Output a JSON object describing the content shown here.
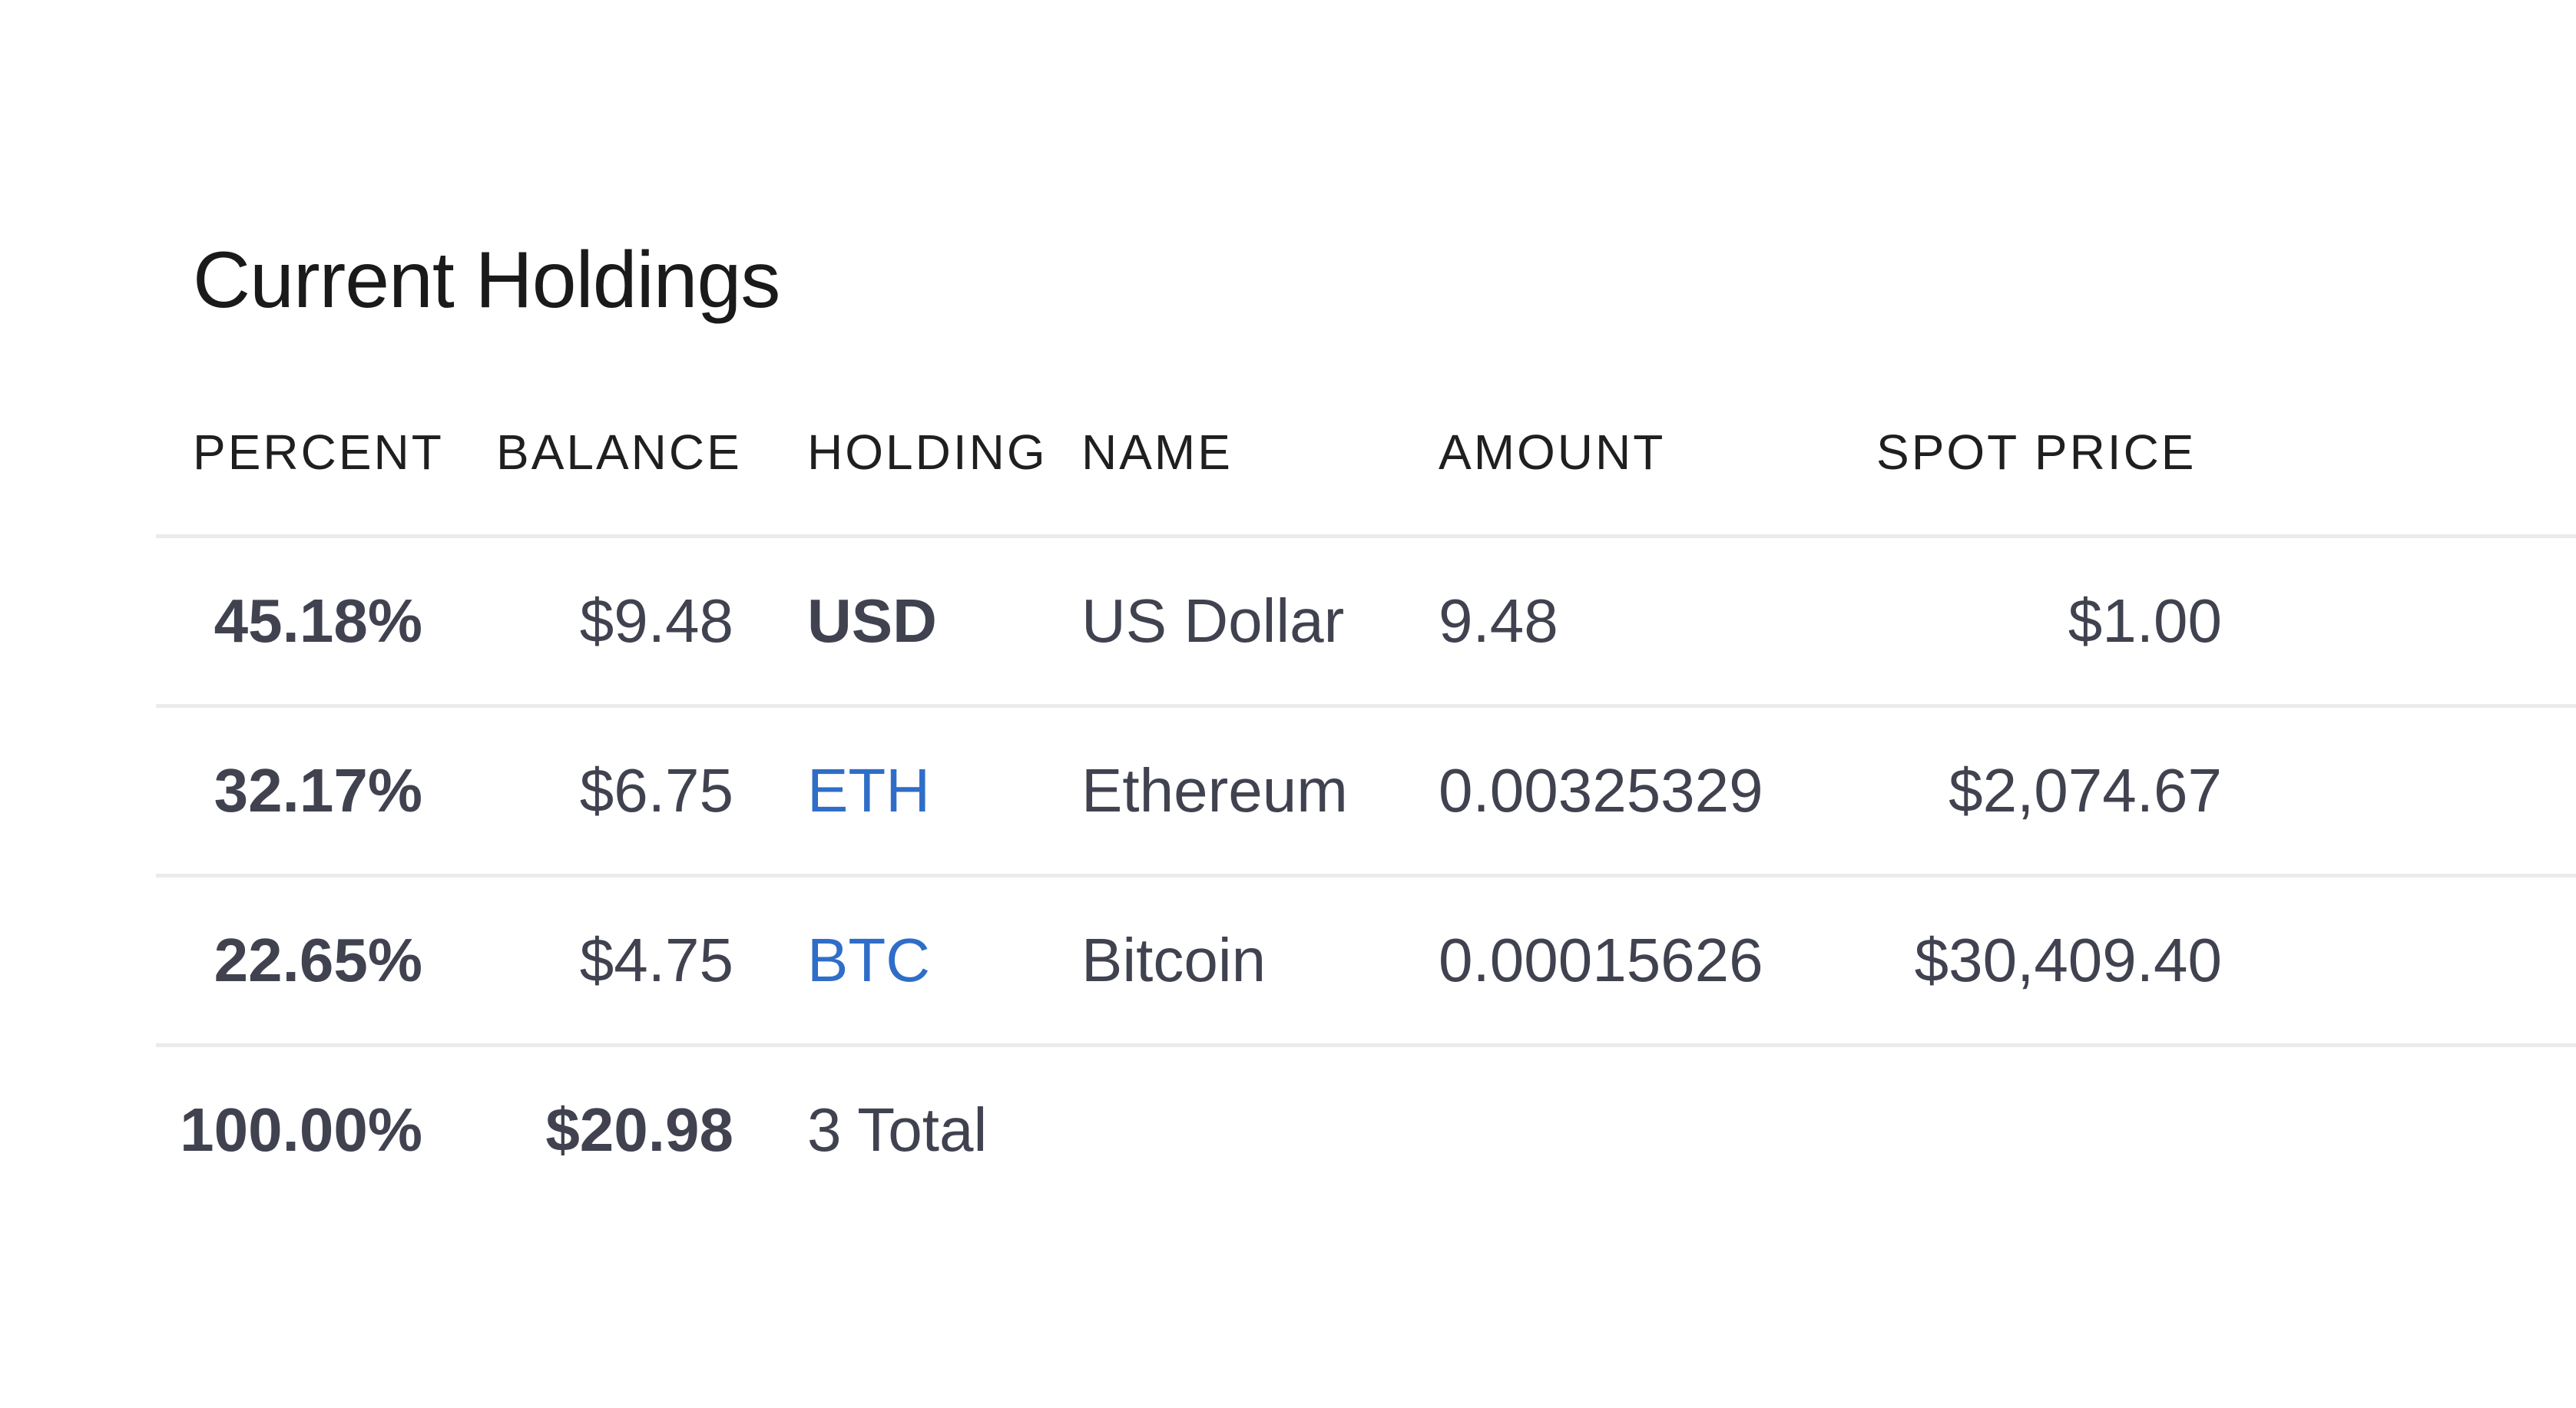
{
  "title": "Current Holdings",
  "columns": {
    "percent": "PERCENT",
    "balance": "BALANCE",
    "holding": "HOLDING",
    "name": "NAME",
    "amount": "AMOUNT",
    "spot_price": "SPOT PRICE"
  },
  "rows": [
    {
      "percent": "45.18%",
      "balance": "$9.48",
      "holding": "USD",
      "name": "US Dollar",
      "amount": "9.48",
      "spot_price": "$1.00"
    },
    {
      "percent": "32.17%",
      "balance": "$6.75",
      "holding": "ETH",
      "name": "Ethereum",
      "amount": "0.00325329",
      "spot_price": "$2,074.67"
    },
    {
      "percent": "22.65%",
      "balance": "$4.75",
      "holding": "BTC",
      "name": "Bitcoin",
      "amount": "0.00015626",
      "spot_price": "$30,409.40"
    }
  ],
  "total": {
    "percent": "100.00%",
    "balance": "$20.98",
    "holding": "3 Total"
  },
  "colors": {
    "link": "#2f6ec8",
    "text": "#40424f",
    "header": "#1f1f1f",
    "divider": "#ebebeb"
  }
}
